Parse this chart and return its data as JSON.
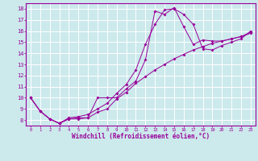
{
  "title": "",
  "xlabel": "Windchill (Refroidissement éolien,°C)",
  "ylabel": "",
  "bg_color": "#cce9ec",
  "line_color": "#990099",
  "grid_color": "#ffffff",
  "xlim": [
    -0.5,
    23.5
  ],
  "ylim": [
    7.5,
    18.5
  ],
  "xticks": [
    0,
    1,
    2,
    3,
    4,
    5,
    6,
    7,
    8,
    9,
    10,
    11,
    12,
    13,
    14,
    15,
    16,
    17,
    18,
    19,
    20,
    21,
    22,
    23
  ],
  "yticks": [
    8,
    9,
    10,
    11,
    12,
    13,
    14,
    15,
    16,
    17,
    18
  ],
  "line1_x": [
    0,
    1,
    2,
    3,
    4,
    5,
    6,
    7,
    8,
    9,
    10,
    11,
    12,
    13,
    14,
    15,
    16,
    17,
    18,
    19,
    20,
    21,
    22,
    23
  ],
  "line1_y": [
    10.0,
    8.8,
    8.1,
    7.7,
    8.1,
    8.2,
    8.2,
    8.7,
    9.0,
    9.9,
    10.5,
    11.3,
    11.9,
    12.5,
    13.0,
    13.5,
    13.9,
    14.3,
    14.6,
    14.9,
    15.1,
    15.3,
    15.5,
    15.8
  ],
  "line2_x": [
    0,
    1,
    2,
    3,
    4,
    5,
    6,
    7,
    8,
    9,
    10,
    11,
    12,
    13,
    14,
    15,
    16,
    17,
    18,
    19,
    20,
    21,
    22,
    23
  ],
  "line2_y": [
    10.0,
    8.8,
    8.1,
    7.7,
    8.2,
    8.3,
    8.5,
    9.0,
    9.5,
    10.4,
    11.2,
    12.5,
    14.8,
    16.6,
    17.9,
    18.0,
    17.5,
    16.6,
    14.4,
    14.3,
    14.7,
    15.0,
    15.3,
    16.0
  ],
  "line3_x": [
    0,
    1,
    2,
    3,
    4,
    5,
    6,
    7,
    8,
    9,
    10,
    11,
    12,
    13,
    14,
    15,
    16,
    17,
    18,
    19,
    20,
    21,
    22,
    23
  ],
  "line3_y": [
    10.0,
    8.8,
    8.1,
    7.7,
    8.1,
    8.1,
    8.2,
    10.0,
    10.0,
    10.0,
    10.8,
    11.5,
    13.4,
    17.8,
    17.5,
    18.1,
    16.4,
    14.8,
    15.2,
    15.1,
    15.1,
    15.3,
    15.5,
    15.9
  ]
}
